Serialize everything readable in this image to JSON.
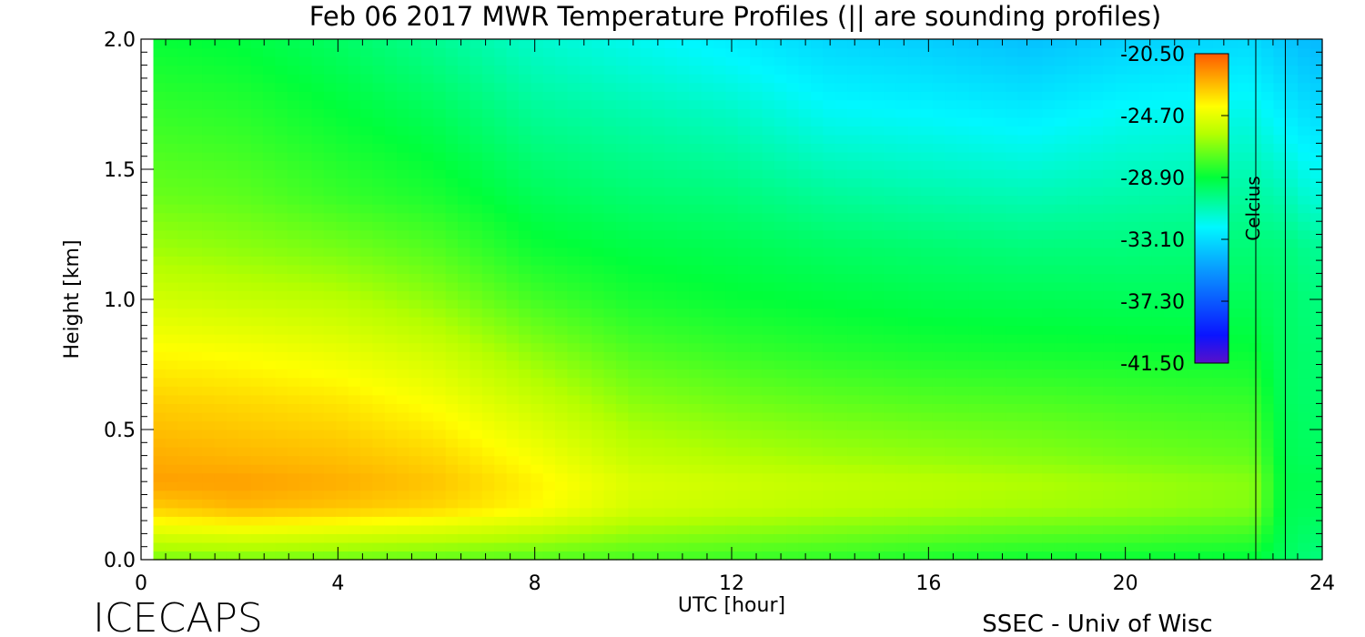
{
  "chart_data": {
    "type": "heatmap",
    "title": "Feb 06 2017 MWR Temperature Profiles (|| are sounding profiles)",
    "xlabel": "UTC [hour]",
    "ylabel": "Height [km]",
    "xlim": [
      0,
      24
    ],
    "ylim": [
      0,
      2.0
    ],
    "x_ticks": [
      "0",
      "4",
      "8",
      "12",
      "16",
      "20",
      "24"
    ],
    "y_ticks": [
      "0.0",
      "0.5",
      "1.0",
      "1.5",
      "2.0"
    ],
    "colorbar": {
      "label": "Celcius",
      "ticks": [
        "-20.50",
        "-24.70",
        "-28.90",
        "-33.10",
        "-37.30",
        "-41.50"
      ],
      "range": [
        -41.5,
        -20.5
      ]
    },
    "sounding_times_hours": [
      22.65,
      23.25
    ],
    "profiles": [
      {
        "hour": 0.25,
        "temps": [
          -27.0,
          -23.0,
          -22.0,
          -22.3,
          -23.0,
          -24.0,
          -25.2,
          -26.3,
          -27.2,
          -28.0,
          -28.8
        ]
      },
      {
        "hour": 2,
        "temps": [
          -27.0,
          -22.5,
          -22.0,
          -22.5,
          -23.2,
          -24.2,
          -25.5,
          -26.6,
          -27.4,
          -28.2,
          -29.0
        ]
      },
      {
        "hour": 4,
        "temps": [
          -27.2,
          -22.8,
          -22.3,
          -22.7,
          -23.5,
          -24.6,
          -25.8,
          -27.0,
          -28.0,
          -28.8,
          -29.6
        ]
      },
      {
        "hour": 6,
        "temps": [
          -27.4,
          -23.2,
          -22.8,
          -23.2,
          -24.2,
          -25.3,
          -26.6,
          -27.6,
          -28.5,
          -29.4,
          -30.4
        ]
      },
      {
        "hour": 8,
        "temps": [
          -27.6,
          -24.0,
          -23.8,
          -24.3,
          -25.4,
          -26.6,
          -27.8,
          -28.7,
          -29.4,
          -30.4,
          -31.4
        ]
      },
      {
        "hour": 10,
        "temps": [
          -27.8,
          -25.2,
          -25.0,
          -25.6,
          -26.6,
          -27.6,
          -28.5,
          -29.1,
          -29.8,
          -30.8,
          -32.0
        ]
      },
      {
        "hour": 12,
        "temps": [
          -28.0,
          -25.5,
          -25.3,
          -26.0,
          -27.0,
          -28.0,
          -28.8,
          -29.3,
          -30.0,
          -31.2,
          -32.6
        ]
      },
      {
        "hour": 14,
        "temps": [
          -28.2,
          -25.8,
          -25.6,
          -26.3,
          -27.3,
          -28.3,
          -29.0,
          -29.6,
          -30.5,
          -32.0,
          -33.3
        ]
      },
      {
        "hour": 16,
        "temps": [
          -28.5,
          -26.0,
          -25.8,
          -26.5,
          -27.5,
          -28.5,
          -29.2,
          -29.8,
          -30.8,
          -32.2,
          -33.6
        ]
      },
      {
        "hour": 18,
        "temps": [
          -28.7,
          -26.2,
          -26.0,
          -26.7,
          -27.6,
          -28.6,
          -29.3,
          -30.0,
          -31.0,
          -32.5,
          -34.0
        ]
      },
      {
        "hour": 20,
        "temps": [
          -28.8,
          -26.4,
          -26.3,
          -27.0,
          -27.8,
          -28.7,
          -29.4,
          -30.0,
          -30.8,
          -32.0,
          -33.5
        ]
      },
      {
        "hour": 22.6,
        "temps": [
          -29.0,
          -26.8,
          -26.7,
          -27.3,
          -28.0,
          -28.8,
          -29.4,
          -29.9,
          -30.6,
          -31.8,
          -33.2
        ]
      },
      {
        "hour": 23.25,
        "temps": [
          -29.5,
          -29.3,
          -29.2,
          -29.3,
          -29.5,
          -29.6,
          -29.7,
          -30.0,
          -31.0,
          -32.5,
          -33.8
        ]
      },
      {
        "hour": 23.75,
        "temps": [
          -30.0,
          -29.4,
          -29.3,
          -29.5,
          -29.7,
          -29.8,
          -30.0,
          -30.4,
          -31.6,
          -33.0,
          -34.2
        ]
      }
    ],
    "heights_km": [
      0.0,
      0.2,
      0.3,
      0.4,
      0.6,
      0.8,
      1.0,
      1.2,
      1.4,
      1.7,
      2.0
    ]
  },
  "footer": {
    "left_brand": "ICECAPS",
    "right_credit": "SSEC - Univ of Wisc"
  }
}
